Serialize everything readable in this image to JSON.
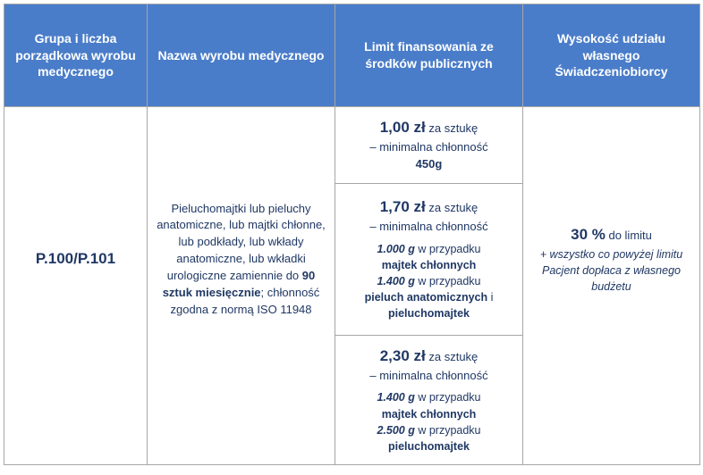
{
  "colors": {
    "header_bg": "#4a7dc9",
    "header_text": "#ffffff",
    "body_text": "#203864",
    "border": "#a6a6a6"
  },
  "headers": {
    "col1": "Grupa i liczba porządkowa wyrobu medycznego",
    "col2": "Nazwa wyrobu medycznego",
    "col3": "Limit finansowania ze środków publicznych",
    "col4": "Wysokość udziału własnego Świadczeniobiorcy"
  },
  "row": {
    "code": "P.100/P.101",
    "description_1": "Pieluchomajtki lub pieluchy anatomiczne, lub majtki chłonne, lub podkłady, lub wkłady anatomiczne, lub wkładki urologiczne zamiennie do",
    "description_bold": "90 sztuk miesięcznie",
    "description_2": "; chłonność zgodna z normą ISO 11948",
    "limit1": {
      "price": "1,00 zł",
      "per": " za sztukę",
      "line2": "– minimalna chłonność",
      "weight": "450g"
    },
    "limit2": {
      "price": "1,70 zł",
      "per": " za sztukę",
      "line2": "– minimalna chłonność",
      "w1": "1.000 g",
      "w1_case": " w przypadku",
      "w1_item": "majtek chłonnych",
      "w2": "1.400 g",
      "w2_case": " w przypadku",
      "w2_item1": "pieluch anatomicznych",
      "w2_and": " i",
      "w2_item2": "pieluchomajtek"
    },
    "limit3": {
      "price": "2,30 zł",
      "per": " za sztukę",
      "line2": "– minimalna chłonność",
      "w1": "1.400 g",
      "w1_case": " w przypadku",
      "w1_item": "majtek chłonnych",
      "w2": "2.500 g",
      "w2_case": " w przypadku",
      "w2_item": "pieluchomajtek"
    },
    "share": {
      "percent": "30 %",
      "percent_after": " do limitu",
      "note": "+ wszystko co powyżej limitu Pacjent dopłaca z własnego budżetu"
    }
  }
}
